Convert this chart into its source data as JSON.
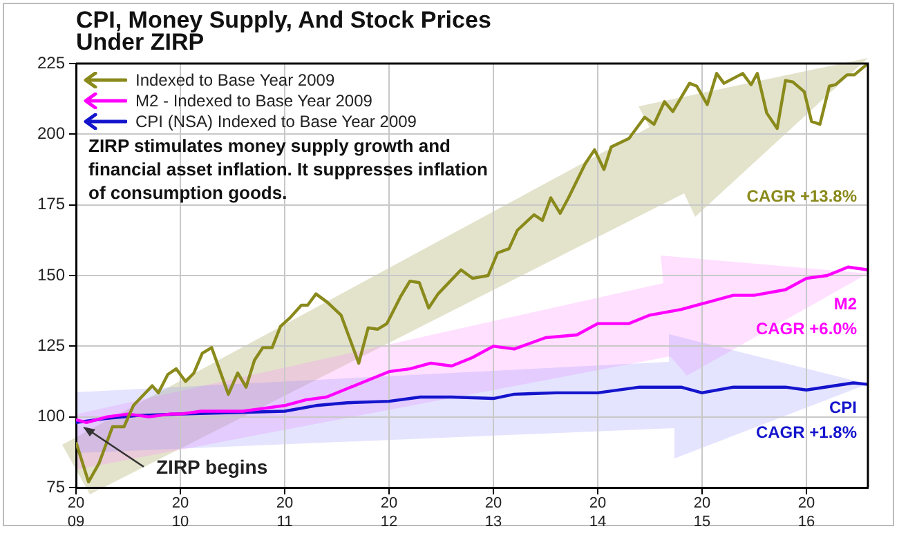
{
  "chart_data": {
    "type": "line",
    "title": "CPI, Money Supply, And Stock Prices Under ZIRP",
    "xlim": [
      2009,
      2016.59
    ],
    "xticks": [
      {
        "value": 2009,
        "label": "2009"
      },
      {
        "value": 2010,
        "label": "2010"
      },
      {
        "value": 2011,
        "label": "2011"
      },
      {
        "value": 2012,
        "label": "2012"
      },
      {
        "value": 2013,
        "label": "2013"
      },
      {
        "value": 2014,
        "label": "2014"
      },
      {
        "value": 2015,
        "label": "2015"
      },
      {
        "value": 2016,
        "label": "2016"
      }
    ],
    "ylim": [
      75,
      225
    ],
    "yticks": [
      75,
      100,
      125,
      150,
      175,
      200,
      225
    ],
    "grid": true,
    "legend": "top left",
    "marker": "none",
    "line_style": "solid",
    "series": [
      {
        "name": "Indexed to Base Year 2009",
        "color": "#8a8a1c",
        "x": [
          2009.0,
          2009.12,
          2009.22,
          2009.35,
          2009.46,
          2009.55,
          2009.73,
          2009.79,
          2009.88,
          2009.96,
          2010.05,
          2010.13,
          2010.21,
          2010.3,
          2010.46,
          2010.55,
          2010.63,
          2010.71,
          2010.79,
          2010.88,
          2010.96,
          2011.05,
          2011.16,
          2011.22,
          2011.3,
          2011.41,
          2011.54,
          2011.71,
          2011.8,
          2011.89,
          2011.98,
          2012.11,
          2012.2,
          2012.29,
          2012.38,
          2012.47,
          2012.69,
          2012.8,
          2012.95,
          2013.04,
          2013.15,
          2013.23,
          2013.39,
          2013.47,
          2013.55,
          2013.64,
          2013.72,
          2013.88,
          2013.97,
          2014.06,
          2014.13,
          2014.3,
          2014.45,
          2014.54,
          2014.64,
          2014.72,
          2014.88,
          2014.95,
          2015.05,
          2015.14,
          2015.21,
          2015.39,
          2015.47,
          2015.53,
          2015.62,
          2015.72,
          2015.8,
          2015.87,
          2015.98,
          2016.05,
          2016.13,
          2016.22,
          2016.28,
          2016.39,
          2016.46,
          2016.59
        ],
        "values": [
          91,
          77,
          83.5,
          96.5,
          96.5,
          104,
          111,
          108.5,
          115,
          117,
          112.5,
          115.5,
          122.5,
          124.5,
          108,
          115.5,
          110.5,
          120,
          124.5,
          124.5,
          132,
          135,
          139.5,
          139.5,
          143.5,
          140.5,
          136,
          119,
          131.5,
          131,
          133,
          142.5,
          148,
          147.5,
          138.5,
          143.5,
          152,
          149,
          150,
          158,
          159.5,
          166,
          171.5,
          169.5,
          177.5,
          172,
          177.5,
          189.5,
          194.5,
          187.5,
          195.5,
          198.5,
          206,
          203.5,
          211.5,
          208,
          218,
          217,
          210.5,
          221.5,
          218,
          221.5,
          217.5,
          221.5,
          207.5,
          202,
          219,
          218.5,
          215,
          204.5,
          203.5,
          217,
          217.5,
          221,
          221,
          225
        ]
      },
      {
        "name": "M2 - Indexed to Base Year 2009",
        "color": "#ff00ff",
        "x": [
          2009.0,
          2009.1,
          2009.3,
          2009.5,
          2009.7,
          2009.9,
          2010.0,
          2010.2,
          2010.4,
          2010.6,
          2010.8,
          2011.0,
          2011.2,
          2011.4,
          2011.6,
          2011.8,
          2012.0,
          2012.2,
          2012.4,
          2012.6,
          2012.8,
          2013.0,
          2013.2,
          2013.5,
          2013.8,
          2014.0,
          2014.3,
          2014.5,
          2014.8,
          2015.0,
          2015.3,
          2015.5,
          2015.8,
          2016.0,
          2016.2,
          2016.4,
          2016.59
        ],
        "values": [
          99,
          98,
          100,
          101,
          100,
          101,
          101,
          102,
          102,
          102,
          103,
          104,
          106,
          107,
          110,
          113,
          116,
          117,
          119,
          118,
          121,
          125,
          124,
          128,
          129,
          133,
          133,
          136,
          138,
          140,
          143,
          143,
          145,
          149,
          150,
          153,
          152
        ]
      },
      {
        "name": "CPI (NSA) Indexed to Base Year 2009",
        "color": "#1414cc",
        "x": [
          2009.0,
          2009.3,
          2009.6,
          2010.0,
          2010.5,
          2011.0,
          2011.3,
          2011.6,
          2012.0,
          2012.3,
          2012.6,
          2013.0,
          2013.2,
          2013.6,
          2014.0,
          2014.4,
          2014.8,
          2015.0,
          2015.3,
          2015.8,
          2016.0,
          2016.45,
          2016.59
        ],
        "values": [
          98,
          99.5,
          100.5,
          101,
          101.5,
          102,
          104,
          105,
          105.5,
          107,
          107,
          106.5,
          108,
          108.5,
          108.5,
          110.5,
          110.5,
          108.5,
          110.5,
          110.5,
          109.5,
          112,
          111.5
        ]
      }
    ],
    "annotations": [
      "ZIRP stimulates money supply growth and financial asset inflation. It suppresses inflation of consumption goods.",
      {
        "text": "ZIRP begins",
        "x": 2009,
        "y": 98
      },
      "CAGR +13.8%",
      "M2",
      "CAGR +6.0%",
      "CPI",
      "CAGR +1.8%"
    ]
  }
}
